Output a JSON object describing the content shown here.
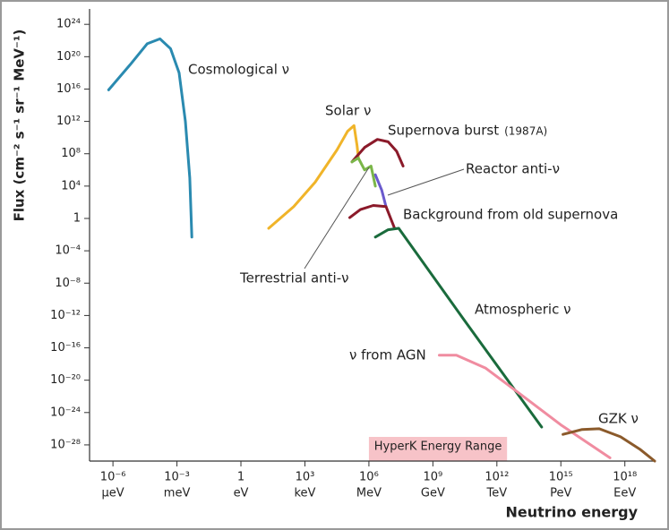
{
  "chart_data": {
    "type": "line",
    "log_x": true,
    "log_y": true,
    "ylabel": "Flux (cm⁻² s⁻¹ sr⁻¹ MeV⁻¹)",
    "xlabel": "Neutrino energy",
    "xlim": [
      8e-08,
      2.5e+19
    ],
    "ylim": [
      1e-30,
      8e+25
    ],
    "xticks": [
      {
        "value": 1e-06,
        "label": "10⁻⁶"
      },
      {
        "value": 0.001,
        "label": "10⁻³"
      },
      1,
      {
        "value": 1000.0,
        "label": "10³"
      },
      {
        "value": 1000000.0,
        "label": "10⁶"
      },
      {
        "value": 1000000000.0,
        "label": "10⁹"
      },
      {
        "value": 1000000000000.0,
        "label": "10¹²"
      },
      {
        "value": 1000000000000000.0,
        "label": "10¹⁵"
      },
      {
        "value": 1e+18,
        "label": "10¹⁸"
      }
    ],
    "xtick_units": [
      "μeV",
      "meV",
      "eV",
      "keV",
      "MeV",
      "GeV",
      "TeV",
      "PeV",
      "EeV"
    ],
    "yticks": [
      {
        "value": 1e+24,
        "label": "10²⁴"
      },
      {
        "value": 1e+20,
        "label": "10²⁰"
      },
      {
        "value": 1e+16,
        "label": "10¹⁶"
      },
      {
        "value": 1000000000000.0,
        "label": "10¹²"
      },
      {
        "value": 100000000.0,
        "label": "10⁸"
      },
      {
        "value": 10000.0,
        "label": "10⁴"
      },
      1,
      {
        "value": 0.0001,
        "label": "10⁻⁴"
      },
      {
        "value": 1e-08,
        "label": "10⁻⁸"
      },
      {
        "value": 1e-12,
        "label": "10⁻¹²"
      },
      {
        "value": 1e-16,
        "label": "10⁻¹⁶"
      },
      {
        "value": 1e-20,
        "label": "10⁻²⁰"
      },
      {
        "value": 1e-24,
        "label": "10⁻²⁴"
      },
      {
        "value": 1e-28,
        "label": "10⁻²⁸"
      }
    ],
    "highlight": {
      "label": "HyperK Energy Range",
      "range": [
        1000000.0,
        3000000000000.0
      ],
      "color": "#f7c3c8"
    },
    "series": [
      {
        "name": "Cosmological ν",
        "color": "#2a8ab0",
        "x": [
          6.3e-07,
          6.3e-06,
          4e-05,
          0.00016,
          0.0005,
          0.00126,
          0.0025,
          0.004,
          0.005
        ],
        "values": [
          7900000000000000.0,
          1e+19,
          4e+21,
          1.6e+22,
          1e+21,
          1e+18,
          1000000000000.0,
          100000.0,
          0.005
        ]
      },
      {
        "name": "Solar ν",
        "color": "#f0b429",
        "x": [
          20,
          300,
          3000,
          32000,
          100000.0,
          200000.0,
          280000.0,
          320000.0
        ],
        "values": [
          0.06,
          30,
          30000.0,
          300000000.0,
          60000000000.0,
          300000000000.0,
          1000000000.0,
          40000000.0
        ]
      },
      {
        "name": "Supernova burst",
        "note": "(1987A)",
        "color": "#8b1a2a",
        "x": [
          160000.0,
          630000.0,
          2500000.0,
          8000000.0,
          20000000.0,
          40000000.0
        ],
        "values": [
          10000000.0,
          600000000.0,
          6000000000.0,
          3000000000.0,
          200000000.0,
          3000000.0
        ]
      },
      {
        "name": "Reactor anti-ν",
        "color": "#6a5acd",
        "x": [
          2000000.0,
          4000000.0,
          6300000.0
        ],
        "values": [
          250000.0,
          3000.0,
          30
        ]
      },
      {
        "name": "Background from old supernova",
        "color": "#8b1a2a",
        "x": [
          126000.0,
          400000.0,
          1600000.0,
          6300000.0,
          16000000.0
        ],
        "values": [
          1.26,
          12.6,
          40,
          30,
          0.06
        ]
      },
      {
        "name": "Terrestrial anti-ν",
        "color": "#7ab648",
        "x": [
          160000.0,
          320000.0,
          630000.0,
          1260000.0,
          2000000.0
        ],
        "values": [
          10000000.0,
          30000000.0,
          1000000.0,
          3000000.0,
          10000.0
        ]
      },
      {
        "name": "Atmospheric ν",
        "color": "#1a6b3c",
        "x": [
          2000000.0,
          8000000.0,
          25000000.0,
          30000000000.0,
          126000000000000.0
        ],
        "values": [
          0.005,
          0.04,
          0.06,
          2.5e-13,
          1.6e-26
        ]
      },
      {
        "name": "ν from AGN",
        "color": "#f08ca0",
        "x": [
          2000000000.0,
          12600000000.0,
          300000000000.0,
          10000000000000.0,
          1000000000000000.0,
          2e+17
        ],
        "values": [
          1.26e-17,
          1.26e-17,
          3e-19,
          3e-22,
          3e-26,
          2.5e-30
        ]
      },
      {
        "name": "GZK ν",
        "color": "#8b5a2b",
        "x": [
          1260000000000000.0,
          1e+16,
          6.3e+16,
          6.3e+17,
          5e+18,
          2.5e+19
        ],
        "values": [
          2e-27,
          8e-27,
          1e-26,
          1e-27,
          3e-29,
          1e-30
        ]
      }
    ]
  }
}
